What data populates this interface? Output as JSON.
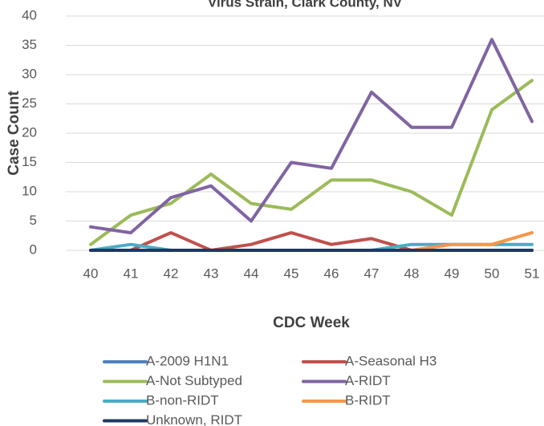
{
  "chart_data": {
    "type": "line",
    "title": "Virus Strain, Clark County, NV",
    "x_label": "CDC Week",
    "y_label": "Case Count",
    "categories": [
      "40",
      "41",
      "42",
      "43",
      "44",
      "45",
      "46",
      "47",
      "48",
      "49",
      "50",
      "51"
    ],
    "ylim": [
      0,
      40
    ],
    "yticks": [
      0,
      5,
      10,
      15,
      20,
      25,
      30,
      35,
      40
    ],
    "grid": true,
    "legend": "bottom",
    "series": [
      {
        "name": "A-2009 H1N1",
        "color": "#4f81bd",
        "values": [
          0,
          0,
          0,
          0,
          0,
          0,
          0,
          0,
          0,
          0,
          0,
          0
        ]
      },
      {
        "name": "A-Seasonal H3",
        "color": "#c0504d",
        "values": [
          0,
          0,
          3,
          0,
          1,
          3,
          1,
          2,
          0,
          0,
          0,
          0
        ]
      },
      {
        "name": "A-Not Subtyped",
        "color": "#9bbb59",
        "values": [
          1,
          6,
          8,
          13,
          8,
          7,
          12,
          12,
          10,
          6,
          24,
          29
        ]
      },
      {
        "name": "A-RIDT",
        "color": "#8064a2",
        "values": [
          4,
          3,
          9,
          11,
          5,
          15,
          14,
          27,
          21,
          21,
          36,
          22
        ]
      },
      {
        "name": "B-non-RIDT",
        "color": "#4bacc6",
        "values": [
          0,
          1,
          0,
          0,
          0,
          0,
          0,
          0,
          1,
          1,
          1,
          1
        ]
      },
      {
        "name": "B-RIDT",
        "color": "#f79646",
        "values": [
          0,
          0,
          0,
          0,
          0,
          0,
          0,
          0,
          0,
          1,
          1,
          3
        ]
      },
      {
        "name": "Unknown, RIDT",
        "color": "#1f3864",
        "values": [
          0,
          0,
          0,
          0,
          0,
          0,
          0,
          0,
          0,
          0,
          0,
          0
        ]
      }
    ]
  }
}
